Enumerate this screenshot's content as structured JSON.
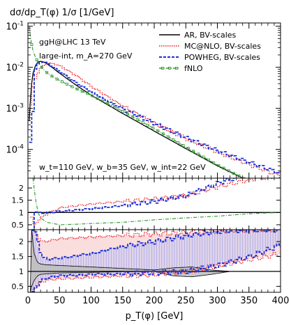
{
  "chart_data": {
    "type": "line",
    "title": "dσ/dp_T(φ) 1/σ  [1/GeV]",
    "xlabel": "p_T(φ) [GeV]",
    "xlim": [
      0,
      400
    ],
    "x_ticks": [
      "0",
      "50",
      "100",
      "150",
      "200",
      "250",
      "300",
      "350",
      "400"
    ],
    "annotations": {
      "process": "ggH@LHC 13 TeV",
      "scenario": "large-int, m_A=270 GeV",
      "widths": "w_t=110 GeV, w_b=35 GeV, w_int=22 GeV"
    },
    "colors": {
      "AR": "#000000",
      "MCNLO": "#e8141e",
      "POWHEG": "#1b2fd8",
      "fNLO": "#3a9a3a",
      "mc_band": "#f6c8c8",
      "pw_band": "#cfcdf2",
      "ar_band": "#bdbdbd"
    },
    "panels": [
      {
        "name": "distribution",
        "yscale": "log",
        "ylim": [
          2e-05,
          0.12
        ],
        "y_ticks": [
          "10^-1",
          "10^-2",
          "10^-3",
          "10^-4"
        ],
        "legend_position": "top-right",
        "series": [
          {
            "name": "AR, BV-scales",
            "style": "solid",
            "x": [
              2,
              5,
              8,
              12,
              16,
              20,
              25,
              30,
              40,
              50,
              75,
              100,
              150,
              200,
              250,
              300,
              350,
              400
            ],
            "y": [
              0.0005,
              0.003,
              0.007,
              0.011,
              0.0135,
              0.014,
              0.0135,
              0.0122,
              0.0095,
              0.0072,
              0.0038,
              0.0021,
              0.00075,
              0.00028,
              0.000105,
              4e-05,
              1.7e-05,
              7.5e-06
            ]
          },
          {
            "name": "MC@NLO, BV-scales",
            "style": "dotted",
            "x": [
              2,
              5,
              8,
              12,
              16,
              20,
              25,
              30,
              40,
              50,
              75,
              100,
              150,
              200,
              250,
              300,
              350,
              400
            ],
            "y": [
              0.0012,
              0.0028,
              0.0045,
              0.0065,
              0.0085,
              0.0103,
              0.0118,
              0.0125,
              0.0122,
              0.0106,
              0.0062,
              0.0033,
              0.0011,
              0.00042,
              0.00018,
              8.5e-05,
              4.2e-05,
              2.2e-05
            ]
          },
          {
            "name": "POWHEG, BV-scales",
            "style": "dashed",
            "x": [
              2,
              5,
              8,
              12,
              16,
              20,
              25,
              30,
              40,
              50,
              75,
              100,
              150,
              200,
              250,
              300,
              350,
              400
            ],
            "y": [
              0.00015,
              0.0003,
              0.0072,
              0.011,
              0.013,
              0.0138,
              0.0132,
              0.012,
              0.0095,
              0.0075,
              0.0041,
              0.0024,
              0.00095,
              0.00042,
              0.00019,
              9.2e-05,
              4.8e-05,
              2.6e-05
            ]
          },
          {
            "name": "fNLO",
            "style": "dash-dot-markers",
            "x": [
              2,
              5,
              8,
              12,
              16,
              20,
              25,
              30,
              40,
              50,
              75,
              100,
              150,
              200,
              250,
              300,
              350,
              400
            ],
            "y": [
              0.1,
              0.042,
              0.026,
              0.0175,
              0.0132,
              0.0108,
              0.0088,
              0.0074,
              0.0058,
              0.0048,
              0.0031,
              0.0021,
              0.00085,
              0.00032,
              0.000115,
              4.2e-05,
              1.7e-05,
              7.2e-06
            ]
          }
        ]
      },
      {
        "name": "ratio",
        "yscale": "linear",
        "ylim": [
          0.3,
          2.4
        ],
        "y_ticks": [
          "2",
          "1.5",
          "1",
          "0.5"
        ],
        "series": [
          {
            "name": "AR, BV-scales",
            "x": [
              0,
              400
            ],
            "y": [
              1,
              1
            ]
          },
          {
            "name": "MC@NLO, BV-scales",
            "x": [
              4,
              7,
              10,
              15,
              20,
              30,
              50,
              100,
              150,
              200,
              250,
              300,
              350,
              400
            ],
            "y": [
              0.8,
              0.45,
              0.55,
              0.7,
              0.8,
              0.95,
              1.2,
              1.35,
              1.45,
              1.55,
              1.7,
              2.05,
              2.35,
              2.5
            ]
          },
          {
            "name": "POWHEG, BV-scales",
            "x": [
              6,
              8,
              10,
              12,
              15,
              20,
              30,
              50,
              100,
              150,
              200,
              250,
              300,
              350,
              400
            ],
            "y": [
              0.3,
              0.95,
              1.05,
              1.0,
              0.99,
              0.98,
              1.0,
              1.05,
              1.15,
              1.3,
              1.45,
              1.7,
              2.2,
              2.6,
              3.0
            ]
          },
          {
            "name": "fNLO",
            "x": [
              8,
              12,
              16,
              20,
              30,
              50,
              75,
              100,
              150,
              200,
              250,
              300,
              350,
              400
            ],
            "y": [
              2.4,
              1.55,
              1.0,
              0.78,
              0.6,
              0.5,
              0.52,
              0.55,
              0.6,
              0.7,
              0.78,
              0.85,
              0.95,
              1.0
            ]
          }
        ]
      },
      {
        "name": "uncertainty",
        "yscale": "linear",
        "ylim": [
          0.3,
          2.4
        ],
        "y_ticks": [
          "2",
          "1.5",
          "1",
          "0.5"
        ],
        "bands": [
          {
            "name": "MC@NLO band",
            "x": [
              4,
              10,
              20,
              30,
              50,
              100,
              150,
              200,
              250,
              300,
              350,
              400
            ],
            "upper": [
              2.4,
              2.3,
              2.0,
              2.02,
              2.1,
              2.15,
              2.2,
              2.25,
              2.3,
              2.35,
              2.4,
              2.4
            ],
            "lower": [
              0.3,
              0.5,
              0.65,
              0.72,
              0.75,
              0.8,
              0.85,
              0.9,
              1.0,
              1.2,
              1.4,
              1.6
            ]
          },
          {
            "name": "POWHEG band",
            "x": [
              6,
              10,
              20,
              30,
              50,
              100,
              150,
              200,
              250,
              300,
              350,
              400
            ],
            "upper": [
              2.4,
              2.3,
              1.5,
              1.4,
              1.45,
              1.6,
              1.85,
              2.0,
              2.2,
              2.35,
              2.4,
              2.4
            ],
            "lower": [
              0.3,
              0.45,
              0.7,
              0.8,
              0.85,
              0.9,
              0.92,
              0.95,
              1.0,
              1.2,
              1.5,
              1.9
            ]
          },
          {
            "name": "AR band",
            "x": [
              4,
              6,
              10,
              15,
              20,
              30,
              50,
              100,
              150,
              200,
              230,
              260,
              290,
              320,
              350,
              400
            ],
            "upper": [
              0.6,
              2.4,
              1.6,
              1.3,
              1.25,
              1.22,
              1.2,
              1.15,
              1.1,
              1.05,
              1.12,
              1.15,
              1.05,
              1.0,
              1.0,
              1.0
            ],
            "lower": [
              0.3,
              0.5,
              0.7,
              0.85,
              0.9,
              0.92,
              0.95,
              0.97,
              0.99,
              1.0,
              0.85,
              0.82,
              0.9,
              1.0,
              1.0,
              1.0
            ]
          }
        ],
        "series": [
          {
            "name": "AR, BV-scales",
            "x": [
              0,
              400
            ],
            "y": [
              1,
              1
            ]
          },
          {
            "name": "MC@NLO upper",
            "x": [
              4,
              10,
              20,
              30,
              50,
              100,
              150,
              200,
              250,
              300,
              350,
              400
            ],
            "y": [
              2.4,
              2.3,
              2.0,
              2.02,
              2.1,
              2.15,
              2.2,
              2.25,
              2.3,
              2.35,
              2.4,
              2.4
            ]
          },
          {
            "name": "MC@NLO lower",
            "x": [
              4,
              10,
              20,
              30,
              50,
              100,
              150,
              200,
              250,
              300,
              350,
              400
            ],
            "y": [
              0.3,
              0.5,
              0.65,
              0.72,
              0.75,
              0.8,
              0.85,
              0.9,
              1.0,
              1.2,
              1.4,
              1.6
            ]
          },
          {
            "name": "POWHEG upper",
            "x": [
              6,
              10,
              20,
              30,
              50,
              100,
              150,
              200,
              250,
              300,
              350,
              400
            ],
            "y": [
              2.4,
              2.3,
              1.5,
              1.4,
              1.45,
              1.6,
              1.85,
              2.0,
              2.2,
              2.35,
              2.4,
              2.4
            ]
          },
          {
            "name": "POWHEG lower",
            "x": [
              6,
              10,
              20,
              30,
              50,
              100,
              150,
              200,
              250,
              300,
              350,
              400
            ],
            "y": [
              0.3,
              0.45,
              0.7,
              0.8,
              0.85,
              0.9,
              0.92,
              0.95,
              1.0,
              1.2,
              1.5,
              1.9
            ]
          }
        ]
      }
    ]
  }
}
